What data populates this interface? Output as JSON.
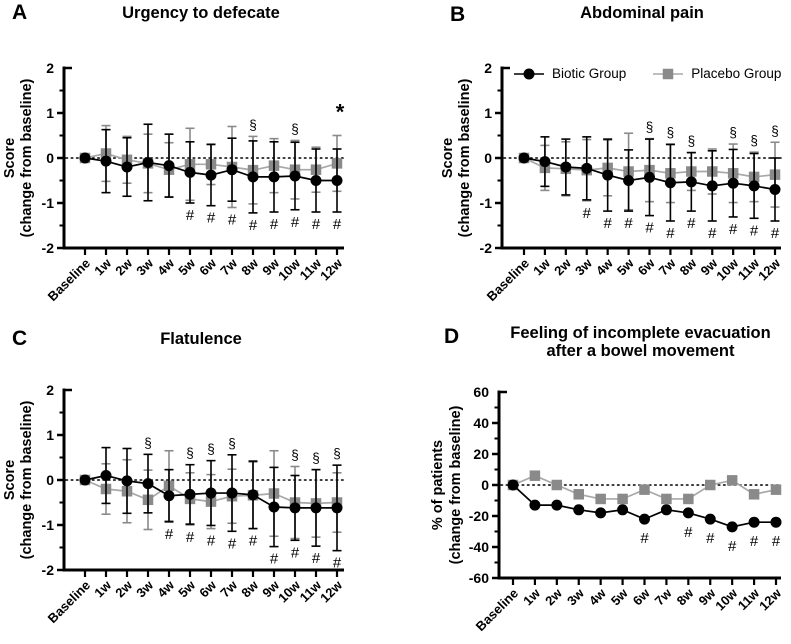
{
  "figure": {
    "legend": {
      "items": [
        {
          "label": "Biotic Group",
          "marker": "circle",
          "color": "#000000",
          "line_color": "#000000"
        },
        {
          "label": "Placebo Group",
          "marker": "square",
          "color": "#8a8a8a",
          "line_color": "#a8a8a8"
        }
      ]
    },
    "symbols": {
      "hash": "#",
      "section": "§",
      "star": "*"
    },
    "colors": {
      "axis": "#000000",
      "background": "#ffffff"
    }
  },
  "chart_data": [
    {
      "id": "A",
      "panel_letter": "A",
      "type": "line",
      "title": "Urgency to defecate",
      "ylabel": [
        "Score",
        "(change from baseline)"
      ],
      "categories": [
        "Baseline",
        "1w",
        "2w",
        "3w",
        "4w",
        "5w",
        "6w",
        "7w",
        "8w",
        "9w",
        "10w",
        "11w",
        "12w"
      ],
      "ylim": [
        -2,
        2
      ],
      "yticks": [
        -2,
        -1,
        0,
        1,
        2
      ],
      "zero_line": "dotted",
      "series": [
        {
          "name": "Biotic Group",
          "marker": "circle",
          "color": "#000000",
          "line_color": "#000000",
          "values": [
            0,
            -0.07,
            -0.2,
            -0.1,
            -0.17,
            -0.32,
            -0.38,
            -0.26,
            -0.42,
            -0.42,
            -0.4,
            -0.5,
            -0.5
          ],
          "errors": [
            0,
            0.7,
            0.65,
            0.85,
            0.7,
            0.68,
            0.68,
            0.7,
            0.8,
            0.78,
            0.75,
            0.7,
            0.7
          ]
        },
        {
          "name": "Placebo Group",
          "marker": "square",
          "color": "#8a8a8a",
          "line_color": "#a8a8a8",
          "values": [
            0,
            0.1,
            -0.04,
            -0.12,
            -0.26,
            -0.14,
            -0.14,
            -0.2,
            -0.27,
            -0.17,
            -0.26,
            -0.26,
            -0.12
          ],
          "errors": [
            0,
            0.62,
            0.52,
            0.65,
            0.6,
            0.8,
            0.45,
            0.9,
            0.75,
            0.6,
            0.65,
            0.5,
            0.62
          ]
        }
      ],
      "annotations": {
        "hash": [
          "5w",
          "6w",
          "7w",
          "8w",
          "9w",
          "10w",
          "11w",
          "12w"
        ],
        "section": [
          "8w",
          "10w"
        ],
        "star": [
          "12w"
        ]
      }
    },
    {
      "id": "B",
      "panel_letter": "B",
      "type": "line",
      "title": "Abdominal pain",
      "ylabel": [
        "Score",
        "(change from baseline)"
      ],
      "categories": [
        "Baseline",
        "1w",
        "2w",
        "3w",
        "4w",
        "5w",
        "6w",
        "7w",
        "8w",
        "9w",
        "10w",
        "11w",
        "12w"
      ],
      "ylim": [
        -2,
        2
      ],
      "yticks": [
        -2,
        -1,
        0,
        1,
        2
      ],
      "zero_line": "dotted",
      "series": [
        {
          "name": "Biotic Group",
          "marker": "circle",
          "color": "#000000",
          "line_color": "#000000",
          "values": [
            0,
            -0.08,
            -0.2,
            -0.23,
            -0.38,
            -0.5,
            -0.43,
            -0.55,
            -0.53,
            -0.62,
            -0.56,
            -0.62,
            -0.7
          ],
          "errors": [
            0,
            0.55,
            0.62,
            0.7,
            0.8,
            0.68,
            0.85,
            0.85,
            0.65,
            0.78,
            0.75,
            0.72,
            0.7
          ]
        },
        {
          "name": "Placebo Group",
          "marker": "square",
          "color": "#8a8a8a",
          "line_color": "#a8a8a8",
          "values": [
            0,
            -0.22,
            -0.24,
            -0.27,
            -0.22,
            -0.3,
            -0.27,
            -0.34,
            -0.3,
            -0.3,
            -0.34,
            -0.42,
            -0.37
          ],
          "errors": [
            0,
            0.5,
            0.6,
            0.68,
            0.62,
            0.85,
            0.7,
            0.65,
            0.42,
            0.5,
            0.65,
            0.55,
            0.72
          ]
        }
      ],
      "annotations": {
        "hash": [
          "3w",
          "4w",
          "5w",
          "6w",
          "7w",
          "8w",
          "9w",
          "10w",
          "11w",
          "12w"
        ],
        "section": [
          "6w",
          "7w",
          "8w",
          "10w",
          "11w",
          "12w"
        ],
        "star": []
      }
    },
    {
      "id": "C",
      "panel_letter": "C",
      "type": "line",
      "title": "Flatulence",
      "ylabel": [
        "Score",
        "(change from baseline)"
      ],
      "categories": [
        "Baseline",
        "1w",
        "2w",
        "3w",
        "4w",
        "5w",
        "6w",
        "7w",
        "8w",
        "9w",
        "10w",
        "11w",
        "12w"
      ],
      "ylim": [
        -2,
        2
      ],
      "yticks": [
        -2,
        -1,
        0,
        1,
        2
      ],
      "zero_line": "dotted",
      "series": [
        {
          "name": "Biotic Group",
          "marker": "circle",
          "color": "#000000",
          "line_color": "#000000",
          "values": [
            0,
            0.1,
            -0.02,
            -0.08,
            -0.35,
            -0.32,
            -0.29,
            -0.29,
            -0.33,
            -0.6,
            -0.62,
            -0.62,
            -0.62
          ],
          "errors": [
            0,
            0.62,
            0.72,
            0.65,
            0.58,
            0.66,
            0.72,
            0.85,
            0.75,
            0.88,
            0.72,
            0.85,
            0.95
          ]
        },
        {
          "name": "Placebo Group",
          "marker": "square",
          "color": "#8a8a8a",
          "line_color": "#a8a8a8",
          "values": [
            0,
            -0.2,
            -0.25,
            -0.44,
            -0.13,
            -0.42,
            -0.48,
            -0.36,
            -0.34,
            -0.3,
            -0.5,
            -0.52,
            -0.5
          ],
          "errors": [
            0,
            0.56,
            0.7,
            0.66,
            0.78,
            0.58,
            0.6,
            0.6,
            0.74,
            0.95,
            0.8,
            0.75,
            0.66
          ]
        }
      ],
      "annotations": {
        "hash": [
          "4w",
          "5w",
          "6w",
          "7w",
          "8w",
          "9w",
          "10w",
          "11w",
          "12w"
        ],
        "section": [
          "3w",
          "5w",
          "6w",
          "7w",
          "10w",
          "11w",
          "12w"
        ],
        "star": []
      }
    },
    {
      "id": "D",
      "panel_letter": "D",
      "type": "line",
      "title": "Feeling of incomplete evacuation\nafter a bowel movement",
      "ylabel": [
        "% of patients",
        "(change from baseline)"
      ],
      "categories": [
        "Baseline",
        "1w",
        "2w",
        "3w",
        "4w",
        "5w",
        "6w",
        "7w",
        "8w",
        "9w",
        "10w",
        "11w",
        "12w"
      ],
      "ylim": [
        -60,
        60
      ],
      "yticks": [
        -60,
        -40,
        -20,
        0,
        20,
        40,
        60
      ],
      "zero_line": "dotted",
      "series": [
        {
          "name": "Biotic Group",
          "marker": "circle",
          "color": "#000000",
          "line_color": "#000000",
          "values": [
            0,
            -13,
            -13,
            -16,
            -18,
            -16,
            -22,
            -16,
            -18,
            -22,
            -27,
            -24,
            -24
          ]
        },
        {
          "name": "Placebo Group",
          "marker": "square",
          "color": "#8a8a8a",
          "line_color": "#a8a8a8",
          "values": [
            0,
            6,
            0,
            -6,
            -9,
            -9,
            -3,
            -9,
            -9,
            0,
            3,
            -6,
            -3
          ]
        }
      ],
      "annotations": {
        "hash": [
          "6w",
          "8w",
          "9w",
          "10w",
          "11w",
          "12w"
        ],
        "section": [],
        "star": []
      }
    }
  ]
}
